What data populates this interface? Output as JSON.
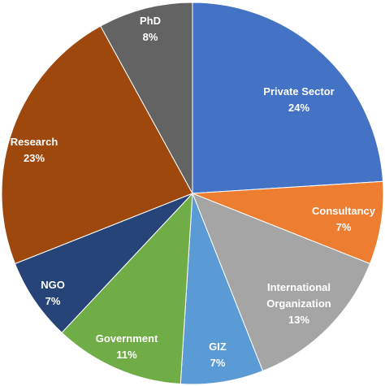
{
  "chart_data": {
    "type": "pie",
    "slices": [
      {
        "name": "Private Sector",
        "value": 24,
        "percent_label": "24%",
        "color": "#4472C4"
      },
      {
        "name": "Consultancy",
        "value": 7,
        "percent_label": "7%",
        "color": "#ED7D31"
      },
      {
        "name": "International Organization",
        "value": 13,
        "percent_label": "13%",
        "color": "#A5A5A5"
      },
      {
        "name": "GIZ",
        "value": 7,
        "percent_label": "7%",
        "color": "#5B9BD5"
      },
      {
        "name": "Government",
        "value": 11,
        "percent_label": "11%",
        "color": "#70AD47"
      },
      {
        "name": "NGO",
        "value": 7,
        "percent_label": "7%",
        "color": "#264478"
      },
      {
        "name": "Research",
        "value": 23,
        "percent_label": "23%",
        "color": "#9E480E"
      },
      {
        "name": "PhD",
        "value": 8,
        "percent_label": "8%",
        "color": "#636363"
      }
    ],
    "start": "12 o'clock",
    "direction": "clockwise",
    "legend": "none"
  }
}
